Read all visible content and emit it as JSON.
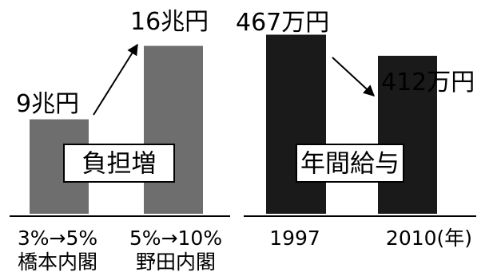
{
  "chart_data": [
    {
      "type": "bar",
      "categories": [
        "3%→5%",
        "5%→10%"
      ],
      "category_sublabels": [
        "橋本内閣",
        "野田内閣"
      ],
      "values": [
        9,
        16
      ],
      "value_labels": [
        "9兆円",
        "16兆円"
      ],
      "unit": "兆円",
      "annotation": "負担増",
      "bar_color": "#6e6e6e",
      "ylim": [
        0,
        19
      ],
      "grid": false,
      "legend": "none"
    },
    {
      "type": "bar",
      "categories": [
        "1997",
        "2010(年)"
      ],
      "values": [
        467,
        412
      ],
      "value_labels": [
        "467万円",
        "412万円"
      ],
      "unit": "万円",
      "annotation": "年間給与",
      "bar_color": "#1a1a1a",
      "ylim": [
        0,
        520
      ],
      "grid": false,
      "legend": "none"
    }
  ]
}
